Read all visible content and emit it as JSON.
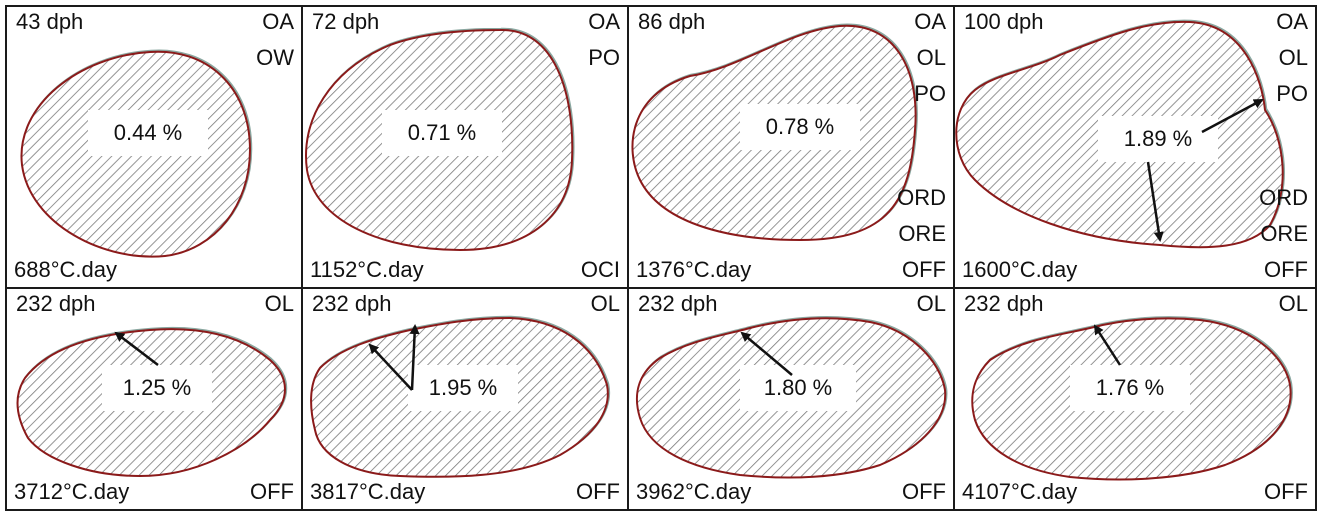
{
  "panels": [
    {
      "age": "43 dph",
      "degree_days": "688°C.day",
      "value": "0.44 %",
      "top_codes": [
        "OA",
        "OW"
      ],
      "bottom_codes": []
    },
    {
      "age": "72 dph",
      "degree_days": "1152°C.day",
      "value": "0.71 %",
      "top_codes": [
        "OA",
        "PO"
      ],
      "bottom_codes": [
        "OCI"
      ]
    },
    {
      "age": "86 dph",
      "degree_days": "1376°C.day",
      "value": "0.78 %",
      "top_codes": [
        "OA",
        "OL",
        "PO"
      ],
      "bottom_codes": [
        "ORD",
        "ORE",
        "OFF"
      ]
    },
    {
      "age": "100 dph",
      "degree_days": "1600°C.day",
      "value": "1.89 %",
      "top_codes": [
        "OA",
        "OL",
        "PO"
      ],
      "bottom_codes": [
        "ORD",
        "ORE",
        "OFF"
      ]
    },
    {
      "age": "232 dph",
      "degree_days": "3712°C.day",
      "value": "1.25 %",
      "top_codes": [
        "OL"
      ],
      "bottom_codes": [
        "OFF"
      ]
    },
    {
      "age": "232 dph",
      "degree_days": "3817°C.day",
      "value": "1.95 %",
      "top_codes": [
        "OL"
      ],
      "bottom_codes": [
        "OFF"
      ]
    },
    {
      "age": "232 dph",
      "degree_days": "3962°C.day",
      "value": "1.80 %",
      "top_codes": [
        "OL"
      ],
      "bottom_codes": [
        "OFF"
      ]
    },
    {
      "age": "232 dph",
      "degree_days": "4107°C.day",
      "value": "1.76 %",
      "top_codes": [
        "OL"
      ],
      "bottom_codes": [
        "OFF"
      ]
    }
  ],
  "colors": {
    "outline": "#8b1a1a",
    "shadow_outline": "#8aa7a0",
    "hatch": "#7a7a7a",
    "border": "#1a1a1a",
    "arrow": "#111111"
  }
}
